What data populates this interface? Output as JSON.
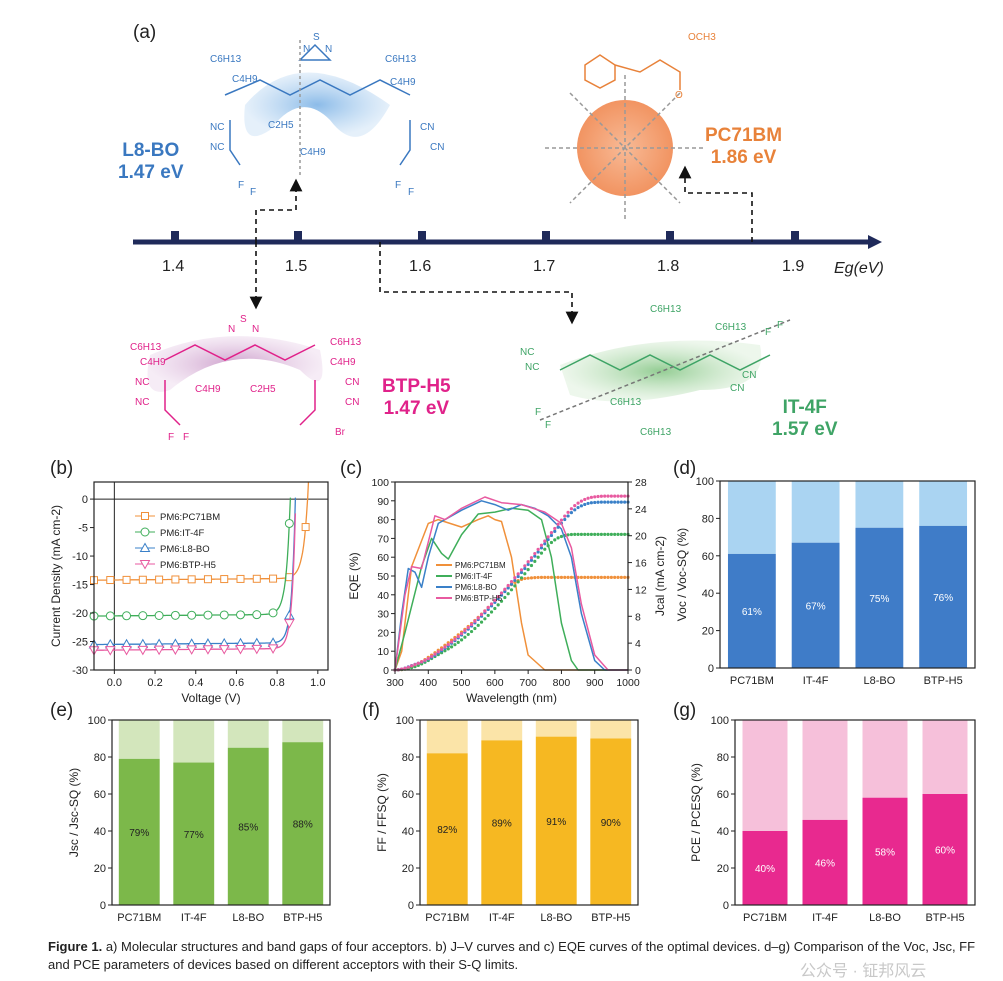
{
  "panel_a": {
    "label": "(a)",
    "axis_label": "Eg(eV)",
    "ticks": [
      "1.4",
      "1.5",
      "1.6",
      "1.7",
      "1.8",
      "1.9"
    ],
    "molecules": [
      {
        "name": "L8-BO",
        "gap": "1.47 eV",
        "color": "#3a78c0"
      },
      {
        "name": "PC71BM",
        "gap": "1.86 eV",
        "color": "#e8823a"
      },
      {
        "name": "BTP-H5",
        "gap": "1.47 eV",
        "color": "#e0228a"
      },
      {
        "name": "IT-4F",
        "gap": "1.57 eV",
        "color": "#3fa466"
      }
    ],
    "substituents": {
      "c6h13": "C6H13",
      "c4h9": "C4H9",
      "c2h5": "C2H5",
      "cn": "CN",
      "f": "F",
      "br": "Br",
      "s": "S",
      "n": "N",
      "och3": "OCH3",
      "o": "O"
    }
  },
  "chart_data": [
    {
      "panel": "(b)",
      "type": "line",
      "xlabel": "Voltage (V)",
      "ylabel": "Current Density (mA cm-2)",
      "xlim": [
        -0.1,
        1.05
      ],
      "ylim": [
        -30,
        3
      ],
      "xticks": [
        "0.0",
        "0.2",
        "0.4",
        "0.6",
        "0.8",
        "1.0"
      ],
      "xtick_values": [
        0,
        0.2,
        0.4,
        0.6,
        0.8,
        1.0
      ],
      "yticks": [
        "0",
        "-5",
        "-10",
        "-15",
        "-20",
        "-25",
        "-30"
      ],
      "ytick_values": [
        0,
        -5,
        -10,
        -15,
        -20,
        -25,
        -30
      ],
      "legend_position": "top-left",
      "series": [
        {
          "name": "PM6:PC71BM",
          "color": "#f0903a",
          "marker": "square",
          "jsc": 14.2,
          "voc": 0.95,
          "slope": 0.022
        },
        {
          "name": "PM6:IT-4F",
          "color": "#3fae5a",
          "marker": "circle",
          "jsc": 20.5,
          "voc": 0.865,
          "slope": 0.02
        },
        {
          "name": "PM6:L8-BO",
          "color": "#3a80c8",
          "marker": "triangle-up",
          "jsc": 25.5,
          "voc": 0.89,
          "slope": 0.018
        },
        {
          "name": "PM6:BTP-H5",
          "color": "#e85aa0",
          "marker": "triangle-down",
          "jsc": 26.5,
          "voc": 0.892,
          "slope": 0.018
        }
      ]
    },
    {
      "panel": "(c)",
      "type": "line",
      "xlabel": "Wavelength (nm)",
      "ylabel": "EQE (%)",
      "y2label": "Jcal (mA cm-2)",
      "xlim": [
        300,
        1000
      ],
      "ylim": [
        0,
        100
      ],
      "y2lim": [
        0,
        28
      ],
      "xticks": [
        "300",
        "400",
        "500",
        "600",
        "700",
        "800",
        "900",
        "1000"
      ],
      "yticks": [
        "0",
        "10",
        "20",
        "30",
        "40",
        "50",
        "60",
        "70",
        "80",
        "90",
        "100"
      ],
      "y2ticks": [
        "0",
        "4",
        "8",
        "12",
        "16",
        "20",
        "24",
        "28"
      ],
      "legend_position": "center-left",
      "series": [
        {
          "name": "PM6:PC71BM",
          "color": "#f0903a",
          "jcal_final": 13.8,
          "x": [
            300,
            320,
            350,
            400,
            430,
            500,
            550,
            580,
            600,
            620,
            650,
            680,
            700,
            750,
            1000
          ],
          "y": [
            0,
            10,
            55,
            78,
            80,
            76,
            80,
            82,
            80,
            79,
            60,
            25,
            8,
            0,
            0
          ]
        },
        {
          "name": "PM6:IT-4F",
          "color": "#3fae5a",
          "jcal_final": 20.2,
          "x": [
            300,
            330,
            380,
            410,
            440,
            460,
            500,
            550,
            600,
            650,
            700,
            740,
            770,
            800,
            830,
            850,
            1000
          ],
          "y": [
            0,
            20,
            55,
            70,
            62,
            59,
            72,
            83,
            84,
            86,
            85,
            80,
            60,
            25,
            5,
            0,
            0
          ]
        },
        {
          "name": "PM6:L8-BO",
          "color": "#3a80c8",
          "jcal_final": 25.0,
          "x": [
            300,
            320,
            340,
            360,
            380,
            400,
            430,
            500,
            560,
            600,
            640,
            680,
            720,
            760,
            800,
            830,
            860,
            900,
            930,
            1000
          ],
          "y": [
            0,
            30,
            54,
            52,
            44,
            60,
            78,
            85,
            90,
            88,
            85,
            88,
            86,
            82,
            75,
            60,
            30,
            5,
            0,
            0
          ]
        },
        {
          "name": "PM6:BTP-H5",
          "color": "#e85aa0",
          "jcal_final": 25.9,
          "x": [
            300,
            330,
            350,
            380,
            420,
            450,
            500,
            570,
            620,
            680,
            750,
            800,
            830,
            860,
            900,
            940,
            1000
          ],
          "y": [
            0,
            40,
            55,
            54,
            82,
            80,
            86,
            92,
            89,
            88,
            84,
            78,
            65,
            35,
            8,
            0,
            0
          ]
        }
      ]
    },
    {
      "panel": "(d)",
      "type": "bar",
      "ylabel": "Voc / Voc-SQ (%)",
      "ylim": [
        0,
        100
      ],
      "yticks": [
        "0",
        "20",
        "40",
        "60",
        "80",
        "100"
      ],
      "categories": [
        "PC71BM",
        "IT-4F",
        "L8-BO",
        "BTP-H5"
      ],
      "values": [
        61,
        67,
        75,
        76
      ],
      "labels": [
        "61%",
        "67%",
        "75%",
        "76%"
      ],
      "color": "#3f7cc8",
      "color_light": "#aad4f2",
      "label_color": "#ffffff"
    },
    {
      "panel": "(e)",
      "type": "bar",
      "ylabel": "Jsc / Jsc-SQ (%)",
      "ylim": [
        0,
        100
      ],
      "yticks": [
        "0",
        "20",
        "40",
        "60",
        "80",
        "100"
      ],
      "categories": [
        "PC71BM",
        "IT-4F",
        "L8-BO",
        "BTP-H5"
      ],
      "values": [
        79,
        77,
        85,
        88
      ],
      "labels": [
        "79%",
        "77%",
        "85%",
        "88%"
      ],
      "color": "#7cb84a",
      "color_light": "#d3e6bc",
      "label_color": "#222222"
    },
    {
      "panel": "(f)",
      "type": "bar",
      "ylabel": "FF / FFSQ (%)",
      "ylim": [
        0,
        100
      ],
      "yticks": [
        "0",
        "20",
        "40",
        "60",
        "80",
        "100"
      ],
      "categories": [
        "PC71BM",
        "IT-4F",
        "L8-BO",
        "BTP-H5"
      ],
      "values": [
        82,
        89,
        91,
        90
      ],
      "labels": [
        "82%",
        "89%",
        "91%",
        "90%"
      ],
      "color": "#f6b822",
      "color_light": "#fbe4a8",
      "label_color": "#222222"
    },
    {
      "panel": "(g)",
      "type": "bar",
      "ylabel": "PCE / PCESQ (%)",
      "ylim": [
        0,
        100
      ],
      "yticks": [
        "0",
        "20",
        "40",
        "60",
        "80",
        "100"
      ],
      "categories": [
        "PC71BM",
        "IT-4F",
        "L8-BO",
        "BTP-H5"
      ],
      "values": [
        40,
        46,
        58,
        60
      ],
      "labels": [
        "40%",
        "46%",
        "58%",
        "60%"
      ],
      "color": "#e8298f",
      "color_light": "#f6c0da",
      "label_color": "#ffffff"
    }
  ],
  "caption": {
    "lead": "Figure 1.",
    "text": "a) Molecular structures and band gaps of four acceptors. b) J–V curves and c) EQE curves of the optimal devices. d–g) Comparison of the Voc, Jsc, FF and PCE parameters of devices based on different acceptors with their S-Q limits."
  },
  "watermark": "公众号 · 钲邦风云"
}
